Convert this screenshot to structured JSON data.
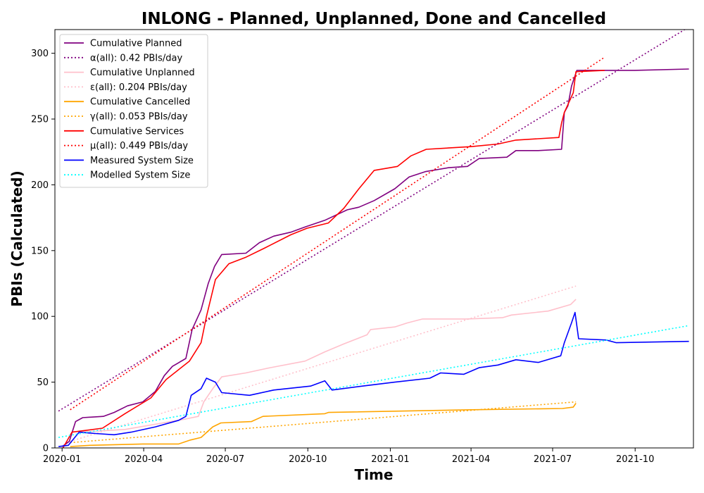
{
  "chart_data": {
    "type": "line",
    "title": "INLONG - Planned, Unplanned, Done  and Cancelled",
    "xlabel": "Time",
    "ylabel": "PBIs (Calculated)",
    "xlim": [
      "2019-12-24",
      "2021-12-05"
    ],
    "ylim": [
      0,
      318
    ],
    "x_ticks": [
      "2020-01",
      "2020-04",
      "2020-07",
      "2020-10",
      "2021-01",
      "2021-04",
      "2021-07",
      "2021-10"
    ],
    "y_ticks": [
      0,
      50,
      100,
      150,
      200,
      250,
      300
    ],
    "grid": false,
    "legend_position": "top-left",
    "series": [
      {
        "name": "Cumulative Planned",
        "color": "#800080",
        "style": "solid",
        "points": [
          [
            "2020-01-01",
            1
          ],
          [
            "2020-01-09",
            5
          ],
          [
            "2020-01-16",
            20
          ],
          [
            "2020-01-24",
            23
          ],
          [
            "2020-02-16",
            24
          ],
          [
            "2020-02-28",
            27
          ],
          [
            "2020-03-14",
            32
          ],
          [
            "2020-03-31",
            35
          ],
          [
            "2020-04-14",
            43
          ],
          [
            "2020-04-24",
            55
          ],
          [
            "2020-05-03",
            62
          ],
          [
            "2020-05-18",
            68
          ],
          [
            "2020-05-25",
            90
          ],
          [
            "2020-06-04",
            105
          ],
          [
            "2020-06-12",
            125
          ],
          [
            "2020-06-19",
            138
          ],
          [
            "2020-06-27",
            147
          ],
          [
            "2020-07-24",
            148
          ],
          [
            "2020-08-08",
            156
          ],
          [
            "2020-08-24",
            161
          ],
          [
            "2020-09-12",
            164
          ],
          [
            "2020-09-28",
            168
          ],
          [
            "2020-10-20",
            173
          ],
          [
            "2020-11-14",
            181
          ],
          [
            "2020-11-27",
            183
          ],
          [
            "2020-12-14",
            188
          ],
          [
            "2021-01-06",
            197
          ],
          [
            "2021-01-22",
            206
          ],
          [
            "2021-02-09",
            210
          ],
          [
            "2021-03-07",
            213
          ],
          [
            "2021-03-28",
            214
          ],
          [
            "2021-04-10",
            220
          ],
          [
            "2021-05-11",
            221
          ],
          [
            "2021-05-21",
            226
          ],
          [
            "2021-06-15",
            226
          ],
          [
            "2021-07-11",
            227
          ],
          [
            "2021-07-14",
            255
          ],
          [
            "2021-07-18",
            260
          ],
          [
            "2021-07-22",
            275
          ],
          [
            "2021-07-28",
            287
          ],
          [
            "2021-08-20",
            287
          ],
          [
            "2021-09-30",
            287
          ],
          [
            "2021-11-30",
            288
          ]
        ]
      },
      {
        "name": "α(all): 0.42 PBIs/day",
        "color": "#800080",
        "style": "dotted",
        "points": [
          [
            "2019-12-28",
            28
          ],
          [
            "2021-11-30",
            320
          ]
        ]
      },
      {
        "name": "Cumulative Unplanned",
        "color": "#ffc0cb",
        "style": "solid",
        "points": [
          [
            "2020-01-20",
            12
          ],
          [
            "2020-03-11",
            14
          ],
          [
            "2020-05-18",
            22
          ],
          [
            "2020-06-01",
            24
          ],
          [
            "2020-06-07",
            35
          ],
          [
            "2020-06-17",
            45
          ],
          [
            "2020-06-27",
            54
          ],
          [
            "2020-07-24",
            57
          ],
          [
            "2020-08-20",
            61
          ],
          [
            "2020-09-28",
            66
          ],
          [
            "2020-10-20",
            73
          ],
          [
            "2020-11-10",
            79
          ],
          [
            "2020-12-06",
            86
          ],
          [
            "2020-12-10",
            90
          ],
          [
            "2021-01-06",
            92
          ],
          [
            "2021-01-20",
            95
          ],
          [
            "2021-02-06",
            98
          ],
          [
            "2021-03-27",
            98
          ],
          [
            "2021-05-06",
            99
          ],
          [
            "2021-05-16",
            101
          ],
          [
            "2021-06-26",
            104
          ],
          [
            "2021-07-21",
            109
          ],
          [
            "2021-07-27",
            113
          ]
        ]
      },
      {
        "name": "ε(all): 0.204 PBIs/day",
        "color": "#ffc0cb",
        "style": "dotted",
        "points": [
          [
            "2020-01-10",
            5
          ],
          [
            "2021-07-27",
            123
          ]
        ]
      },
      {
        "name": "Cumulative Cancelled",
        "color": "#ffa500",
        "style": "solid",
        "points": [
          [
            "2020-01-10",
            1
          ],
          [
            "2020-02-01",
            2
          ],
          [
            "2020-03-31",
            3
          ],
          [
            "2020-05-10",
            3
          ],
          [
            "2020-05-23",
            6
          ],
          [
            "2020-06-04",
            8
          ],
          [
            "2020-06-17",
            16
          ],
          [
            "2020-06-26",
            19
          ],
          [
            "2020-07-30",
            20
          ],
          [
            "2020-08-12",
            24
          ],
          [
            "2020-10-20",
            26
          ],
          [
            "2020-10-24",
            27
          ],
          [
            "2021-04-01",
            29
          ],
          [
            "2021-07-12",
            30
          ],
          [
            "2021-07-24",
            31
          ],
          [
            "2021-07-27",
            34
          ]
        ]
      },
      {
        "name": "γ(all): 0.053 PBIs/day",
        "color": "#ffa500",
        "style": "dotted",
        "points": [
          [
            "2020-01-10",
            4
          ],
          [
            "2021-07-27",
            35
          ]
        ]
      },
      {
        "name": "Cumulative Services",
        "color": "#ff0000",
        "style": "solid",
        "points": [
          [
            "2020-01-02",
            0
          ],
          [
            "2020-01-12",
            12
          ],
          [
            "2020-02-15",
            15
          ],
          [
            "2020-03-11",
            26
          ],
          [
            "2020-04-09",
            38
          ],
          [
            "2020-04-26",
            52
          ],
          [
            "2020-05-22",
            66
          ],
          [
            "2020-06-04",
            80
          ],
          [
            "2020-06-10",
            100
          ],
          [
            "2020-06-20",
            128
          ],
          [
            "2020-07-05",
            140
          ],
          [
            "2020-07-24",
            145
          ],
          [
            "2020-08-14",
            152
          ],
          [
            "2020-09-12",
            162
          ],
          [
            "2020-09-30",
            167
          ],
          [
            "2020-10-24",
            171
          ],
          [
            "2020-11-10",
            182
          ],
          [
            "2020-11-27",
            197
          ],
          [
            "2020-12-14",
            211
          ],
          [
            "2021-01-09",
            214
          ],
          [
            "2021-01-24",
            222
          ],
          [
            "2021-02-10",
            227
          ],
          [
            "2021-04-01",
            229
          ],
          [
            "2021-05-01",
            231
          ],
          [
            "2021-05-21",
            234
          ],
          [
            "2021-07-08",
            236
          ],
          [
            "2021-07-11",
            247
          ],
          [
            "2021-07-14",
            255
          ],
          [
            "2021-07-24",
            270
          ],
          [
            "2021-07-27",
            286
          ],
          [
            "2021-08-28",
            287
          ]
        ]
      },
      {
        "name": "μ(all): 0.449 PBIs/day",
        "color": "#ff0000",
        "style": "dotted",
        "points": [
          [
            "2020-01-10",
            29
          ],
          [
            "2021-08-28",
            297
          ]
        ]
      },
      {
        "name": "Measured System Size",
        "color": "#0000ff",
        "style": "solid",
        "points": [
          [
            "2019-12-28",
            1
          ],
          [
            "2020-01-08",
            2
          ],
          [
            "2020-01-20",
            12
          ],
          [
            "2020-02-07",
            11
          ],
          [
            "2020-02-28",
            10
          ],
          [
            "2020-03-18",
            12
          ],
          [
            "2020-04-14",
            16
          ],
          [
            "2020-05-10",
            21
          ],
          [
            "2020-05-18",
            24
          ],
          [
            "2020-05-24",
            40
          ],
          [
            "2020-06-04",
            45
          ],
          [
            "2020-06-10",
            53
          ],
          [
            "2020-06-20",
            50
          ],
          [
            "2020-06-27",
            42
          ],
          [
            "2020-07-28",
            40
          ],
          [
            "2020-08-24",
            44
          ],
          [
            "2020-10-04",
            47
          ],
          [
            "2020-10-20",
            51
          ],
          [
            "2020-10-28",
            44
          ],
          [
            "2020-12-01",
            47
          ],
          [
            "2021-01-06",
            50
          ],
          [
            "2021-02-14",
            53
          ],
          [
            "2021-02-26",
            57
          ],
          [
            "2021-03-24",
            56
          ],
          [
            "2021-04-10",
            61
          ],
          [
            "2021-05-01",
            63
          ],
          [
            "2021-05-21",
            67
          ],
          [
            "2021-06-15",
            65
          ],
          [
            "2021-07-10",
            70
          ],
          [
            "2021-07-14",
            80
          ],
          [
            "2021-07-22",
            95
          ],
          [
            "2021-07-26",
            103
          ],
          [
            "2021-07-30",
            83
          ],
          [
            "2021-08-30",
            82
          ],
          [
            "2021-09-10",
            80
          ],
          [
            "2021-11-30",
            81
          ]
        ]
      },
      {
        "name": "Modelled System Size",
        "color": "#00ffff",
        "style": "dotted",
        "points": [
          [
            "2019-12-28",
            8
          ],
          [
            "2021-11-30",
            93
          ]
        ]
      }
    ]
  }
}
